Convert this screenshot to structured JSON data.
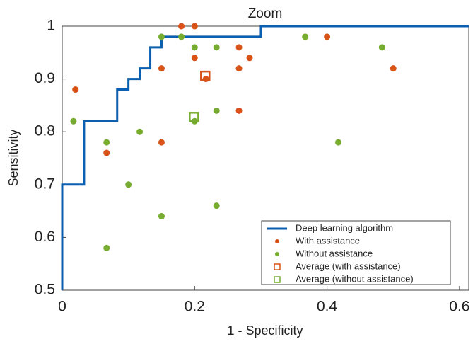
{
  "chart_data": {
    "type": "scatter",
    "title": "Zoom",
    "x_label": "1 - Specificity",
    "y_label": "Sensitivity",
    "xlim": [
      0,
      0.614
    ],
    "ylim": [
      0.5,
      1
    ],
    "xticks": [
      0,
      0.2,
      0.4,
      0.6
    ],
    "yticks": [
      0.5,
      0.6,
      0.7,
      0.8,
      0.9,
      1
    ],
    "grid": false,
    "legend": "lower right",
    "series": [
      {
        "name": "Deep learning algorithm",
        "color": "#0b5fb0",
        "marker": "line",
        "x": [
          0,
          0,
          0.033,
          0.033,
          0.083,
          0.083,
          0.1,
          0.1,
          0.117,
          0.117,
          0.133,
          0.133,
          0.15,
          0.15,
          0.3,
          0.3,
          0.614
        ],
        "values": [
          0.5,
          0.7,
          0.7,
          0.82,
          0.82,
          0.88,
          0.88,
          0.9,
          0.9,
          0.92,
          0.92,
          0.96,
          0.96,
          0.98,
          0.98,
          1,
          1
        ]
      },
      {
        "name": "With assistance",
        "color": "#d95319",
        "marker": "dot",
        "x": [
          0.18,
          0.2,
          0.02,
          0.15,
          0.2,
          0.267,
          0.4,
          0.283,
          0.267,
          0.217,
          0.5,
          0.267,
          0.15,
          0.067
        ],
        "values": [
          1,
          1,
          0.88,
          0.92,
          0.94,
          0.96,
          0.98,
          0.94,
          0.92,
          0.9,
          0.92,
          0.84,
          0.78,
          0.76
        ]
      },
      {
        "name": "Without assistance",
        "color": "#77ac30",
        "marker": "dot",
        "x": [
          0.15,
          0.18,
          0.2,
          0.233,
          0.367,
          0.483,
          0.017,
          0.117,
          0.067,
          0.2,
          0.233,
          0.417,
          0.1,
          0.233,
          0.15,
          0.067
        ],
        "values": [
          0.98,
          0.98,
          0.96,
          0.96,
          0.98,
          0.96,
          0.82,
          0.8,
          0.78,
          0.82,
          0.84,
          0.78,
          0.7,
          0.66,
          0.64,
          0.58
        ]
      },
      {
        "name": "Average (with assistance)",
        "color": "#d95319",
        "marker": "square",
        "x": [
          0.216
        ],
        "values": [
          0.906
        ]
      },
      {
        "name": "Average (without assistance)",
        "color": "#77ac30",
        "marker": "square",
        "x": [
          0.199
        ],
        "values": [
          0.828
        ]
      }
    ]
  }
}
